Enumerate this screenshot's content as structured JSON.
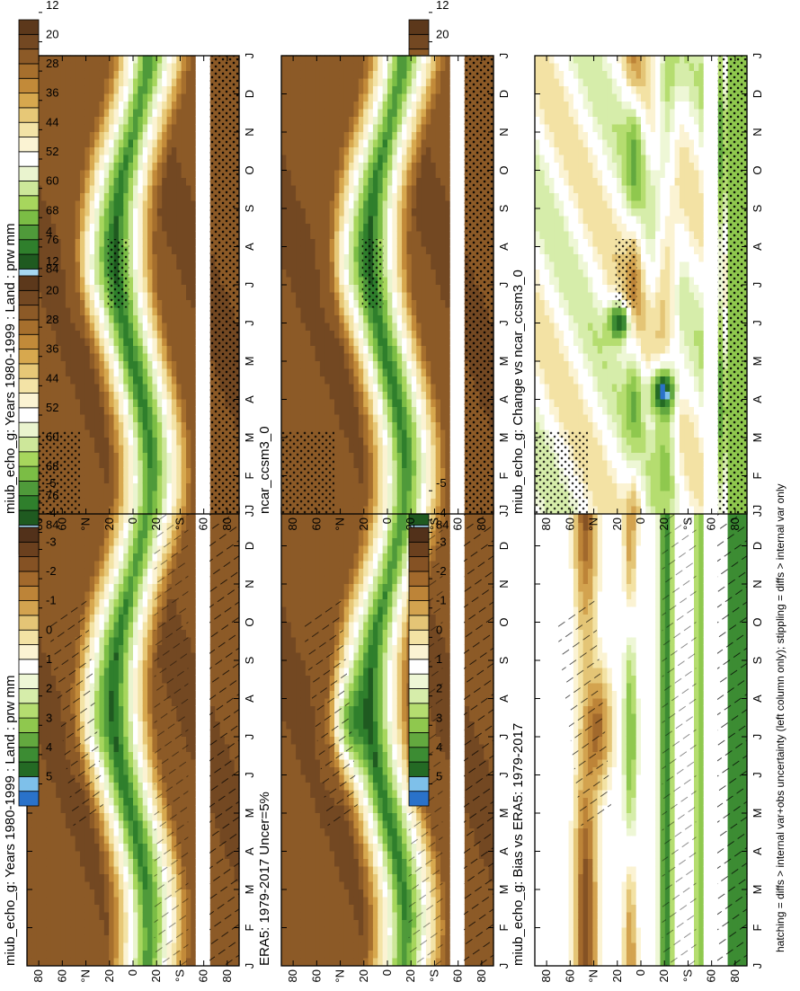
{
  "chart_data": [
    {
      "type": "heatmap",
      "panel": "top-left",
      "title": "miub_echo_g: Years 1980-1999 : Land : prw mm",
      "x_ticks": [
        "J",
        "F",
        "M",
        "A",
        "M",
        "J",
        "J",
        "A",
        "S",
        "O",
        "N",
        "D",
        "J"
      ],
      "y_ticks": [
        "80",
        "60",
        "°N",
        "20",
        "0",
        "20",
        "°S",
        "60",
        "80"
      ],
      "colorbar_ticks": [
        "84",
        "76",
        "68",
        "60",
        "52",
        "44",
        "36",
        "28",
        "20",
        "12",
        "4"
      ],
      "stippling": true,
      "hatching": true
    },
    {
      "type": "heatmap",
      "panel": "top-right",
      "title": "miub_echo_g: Years 1980-1999 : Land : prw mm",
      "x_ticks": [
        "J",
        "F",
        "M",
        "A",
        "M",
        "J",
        "J",
        "A",
        "S",
        "O",
        "N",
        "D",
        "J"
      ],
      "y_ticks": [
        "80",
        "60",
        "°N",
        "20",
        "0",
        "20",
        "°S",
        "60",
        "80"
      ],
      "colorbar_ticks": [
        "84",
        "76",
        "68",
        "60",
        "52",
        "44",
        "36",
        "28",
        "20",
        "12",
        "4"
      ],
      "stippling": true,
      "hatching": false
    },
    {
      "type": "heatmap",
      "panel": "middle-left",
      "title": "ERA5: 1979-2017 Uncer=5%",
      "x_ticks": [
        "J",
        "F",
        "M",
        "A",
        "M",
        "J",
        "J",
        "A",
        "S",
        "O",
        "N",
        "D",
        "J"
      ],
      "y_ticks": [
        "80",
        "60",
        "°N",
        "20",
        "0",
        "20",
        "°S",
        "60",
        "80"
      ],
      "colorbar_ticks": [
        "84",
        "76",
        "68",
        "60",
        "52",
        "44",
        "36",
        "28",
        "20",
        "12",
        "4"
      ],
      "stippling": true,
      "hatching": true
    },
    {
      "type": "heatmap",
      "panel": "middle-right",
      "title": "ncar_ccsm3_0",
      "x_ticks": [
        "J",
        "F",
        "M",
        "A",
        "M",
        "J",
        "J",
        "A",
        "S",
        "O",
        "N",
        "D",
        "J"
      ],
      "y_ticks": [
        "80",
        "60",
        "°N",
        "20",
        "0",
        "20",
        "°S",
        "60",
        "80"
      ],
      "colorbar_ticks": [
        "84",
        "76",
        "68",
        "60",
        "52",
        "44",
        "36",
        "28",
        "20",
        "12",
        "4"
      ],
      "stippling": true,
      "hatching": false
    },
    {
      "type": "heatmap",
      "panel": "bottom-left",
      "title": "miub_echo_g: Bias vs ERA5: 1979-2017",
      "x_ticks": [
        "J",
        "F",
        "M",
        "A",
        "M",
        "J",
        "J",
        "A",
        "S",
        "O",
        "N",
        "D",
        "J"
      ],
      "y_ticks": [
        "80",
        "60",
        "°N",
        "20",
        "0",
        "20",
        "°S",
        "60",
        "80"
      ],
      "colorbar_ticks": [
        "5",
        "4",
        "3",
        "2",
        "1",
        "0",
        "-1",
        "-2",
        "-3",
        "-4",
        "-5"
      ],
      "stippling": true,
      "hatching": true
    },
    {
      "type": "heatmap",
      "panel": "bottom-right",
      "title": "miub_echo_g: Change vs ncar_ccsm3_0",
      "x_ticks": [
        "J",
        "F",
        "M",
        "A",
        "M",
        "J",
        "J",
        "A",
        "S",
        "O",
        "N",
        "D",
        "J"
      ],
      "y_ticks": [
        "80",
        "60",
        "°N",
        "20",
        "0",
        "20",
        "°S",
        "60",
        "80"
      ],
      "colorbar_ticks": [
        "5",
        "4",
        "3",
        "2",
        "1",
        "0",
        "-1",
        "-2",
        "-3",
        "-4",
        "-5"
      ],
      "stippling": true,
      "hatching": false
    }
  ],
  "footer": "hatching = diffs > internal var+obs uncertainty (left column only); stippling = diffs > internal var only",
  "colors": {
    "abs_scale": [
      "#4aa0e8",
      "#a6d8f2",
      "#1f5a20",
      "#2f7f2c",
      "#4f9a3a",
      "#7bbd45",
      "#a7d65d",
      "#cde79a",
      "#eaf4cf",
      "#ffffff",
      "#fbf3d3",
      "#f3e3a6",
      "#e7c877",
      "#d7a84e",
      "#c28a39",
      "#a66f2d",
      "#8c5a27",
      "#734822",
      "#5c381b"
    ],
    "diff_scale": [
      "#2a72c9",
      "#7ec0ea",
      "#246a24",
      "#3c8c33",
      "#63a93f",
      "#8fc84e",
      "#b5dd70",
      "#d6edaa",
      "#eef7d6",
      "#ffffff",
      "#fbf3d3",
      "#f3e2a4",
      "#e4c576",
      "#d3a34f",
      "#bd8438",
      "#a2692c",
      "#855224",
      "#6b401e",
      "#52311a"
    ]
  }
}
